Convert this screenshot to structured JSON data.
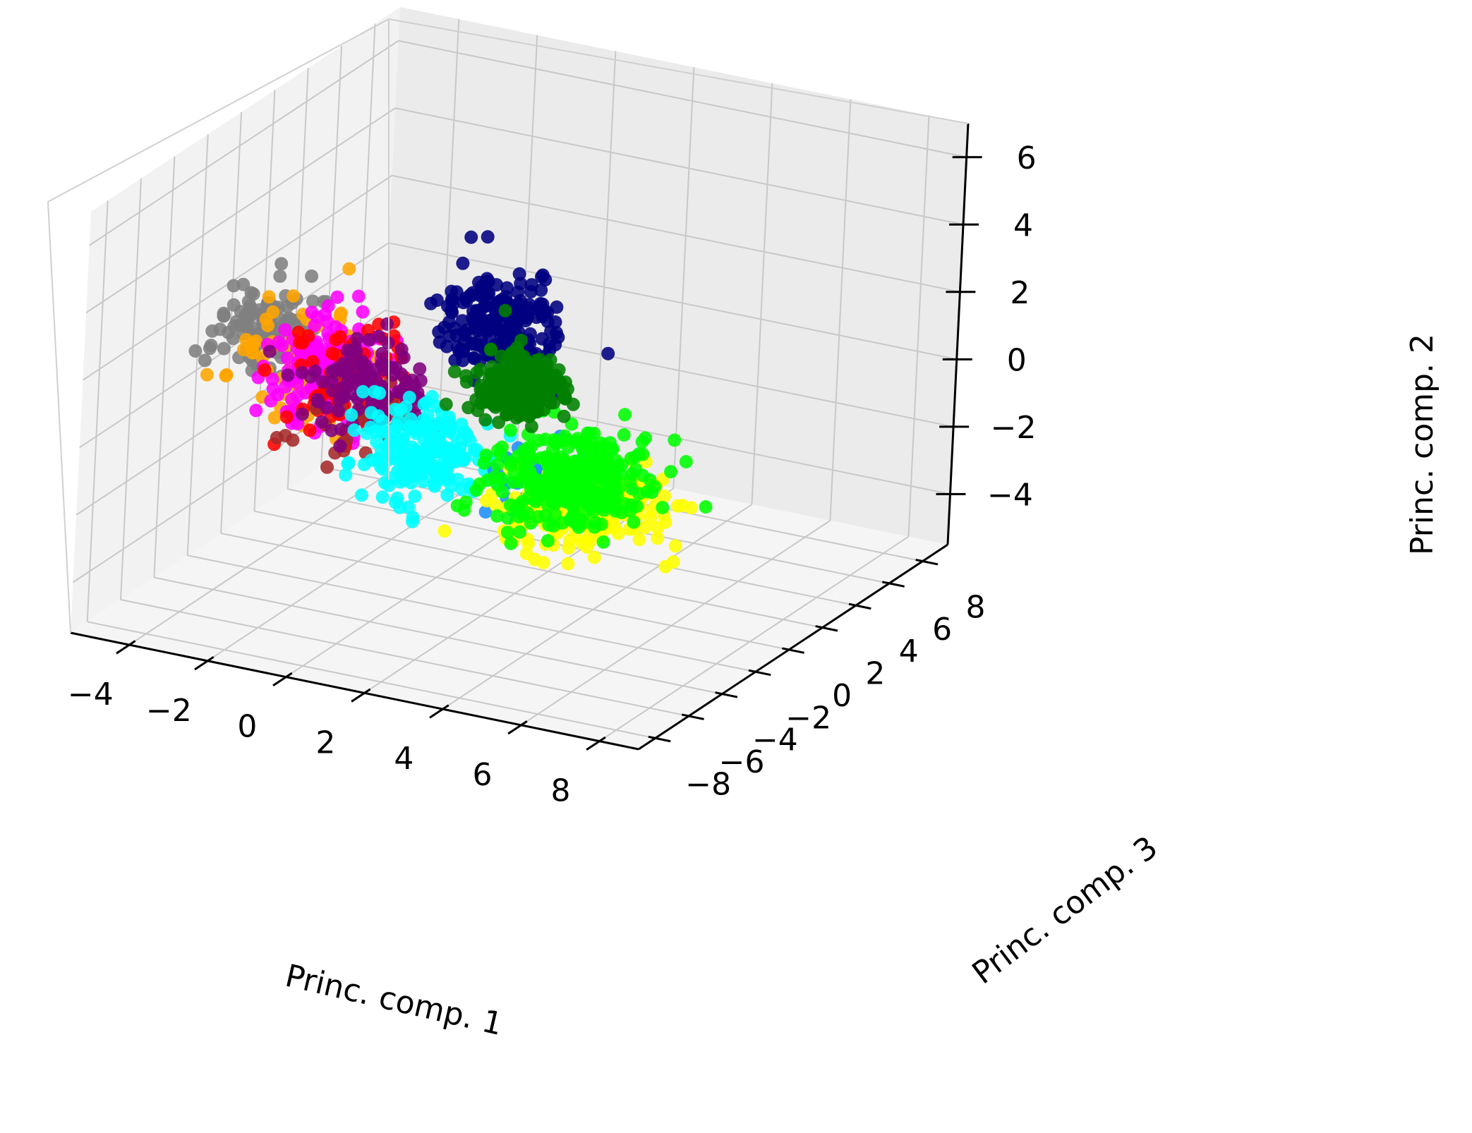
{
  "chart_data": {
    "type": "scatter",
    "projection": "3d",
    "title": "",
    "xlabel": "Princ. comp. 1",
    "ylabel": "Princ. comp. 3",
    "zlabel": "Princ. comp. 2",
    "xlim": [
      -5.5,
      9
    ],
    "ylim": [
      -9,
      9.5
    ],
    "zlim": [
      -5.5,
      7
    ],
    "x_ticks": [
      -4,
      -2,
      0,
      2,
      4,
      6,
      8
    ],
    "x_tick_labels": [
      "−4",
      "−2",
      "0",
      "2",
      "4",
      "6",
      "8"
    ],
    "y_ticks": [
      -8,
      -6,
      -4,
      -2,
      0,
      2,
      4,
      6,
      8
    ],
    "y_tick_labels": [
      "−8",
      "−6",
      "−4",
      "−2",
      "0",
      "2",
      "4",
      "6",
      "8"
    ],
    "z_ticks": [
      -4,
      -2,
      0,
      2,
      4,
      6
    ],
    "z_tick_labels": [
      "−4",
      "−2",
      "0",
      "2",
      "4",
      "6"
    ],
    "grid": true,
    "legend": false,
    "series": [
      {
        "color": "#808080",
        "count": 110,
        "center": [
          -4.2,
          -1.0,
          1.2
        ],
        "spread": [
          1.0,
          1.6,
          1.0
        ]
      },
      {
        "color": "#ffa500",
        "count": 70,
        "center": [
          -3.2,
          -1.5,
          0.8
        ],
        "spread": [
          1.4,
          2.0,
          1.8
        ]
      },
      {
        "color": "#ff00ff",
        "count": 160,
        "center": [
          -2.6,
          -1.2,
          0.4
        ],
        "spread": [
          1.2,
          1.6,
          1.3
        ]
      },
      {
        "color": "#ff0000",
        "count": 70,
        "center": [
          -2.0,
          -1.0,
          0.2
        ],
        "spread": [
          1.5,
          1.8,
          1.5
        ]
      },
      {
        "color": "#a52a2a",
        "count": 35,
        "center": [
          -1.6,
          -2.0,
          -0.6
        ],
        "spread": [
          1.5,
          1.8,
          1.2
        ]
      },
      {
        "color": "#800080",
        "count": 120,
        "center": [
          -1.6,
          -1.0,
          0.2
        ],
        "spread": [
          1.1,
          1.4,
          1.1
        ]
      },
      {
        "color": "#00ffff",
        "count": 200,
        "center": [
          0.6,
          -2.5,
          -0.8
        ],
        "spread": [
          1.3,
          1.6,
          1.2
        ]
      },
      {
        "color": "#000080",
        "count": 220,
        "center": [
          1.0,
          0.5,
          2.0
        ],
        "spread": [
          1.4,
          1.5,
          1.2
        ]
      },
      {
        "color": "#1e90ff",
        "count": 40,
        "center": [
          3.5,
          -1.5,
          -1.5
        ],
        "spread": [
          1.8,
          2.0,
          1.0
        ]
      },
      {
        "color": "#ffff00",
        "count": 190,
        "center": [
          4.2,
          -1.2,
          -2.0
        ],
        "spread": [
          1.8,
          2.2,
          1.0
        ]
      },
      {
        "color": "#00ff00",
        "count": 320,
        "center": [
          3.6,
          -0.8,
          -1.5
        ],
        "spread": [
          1.6,
          2.0,
          1.0
        ]
      },
      {
        "color": "#008000",
        "count": 300,
        "center": [
          1.6,
          0.5,
          0.4
        ],
        "spread": [
          0.9,
          1.1,
          0.7
        ]
      }
    ]
  }
}
